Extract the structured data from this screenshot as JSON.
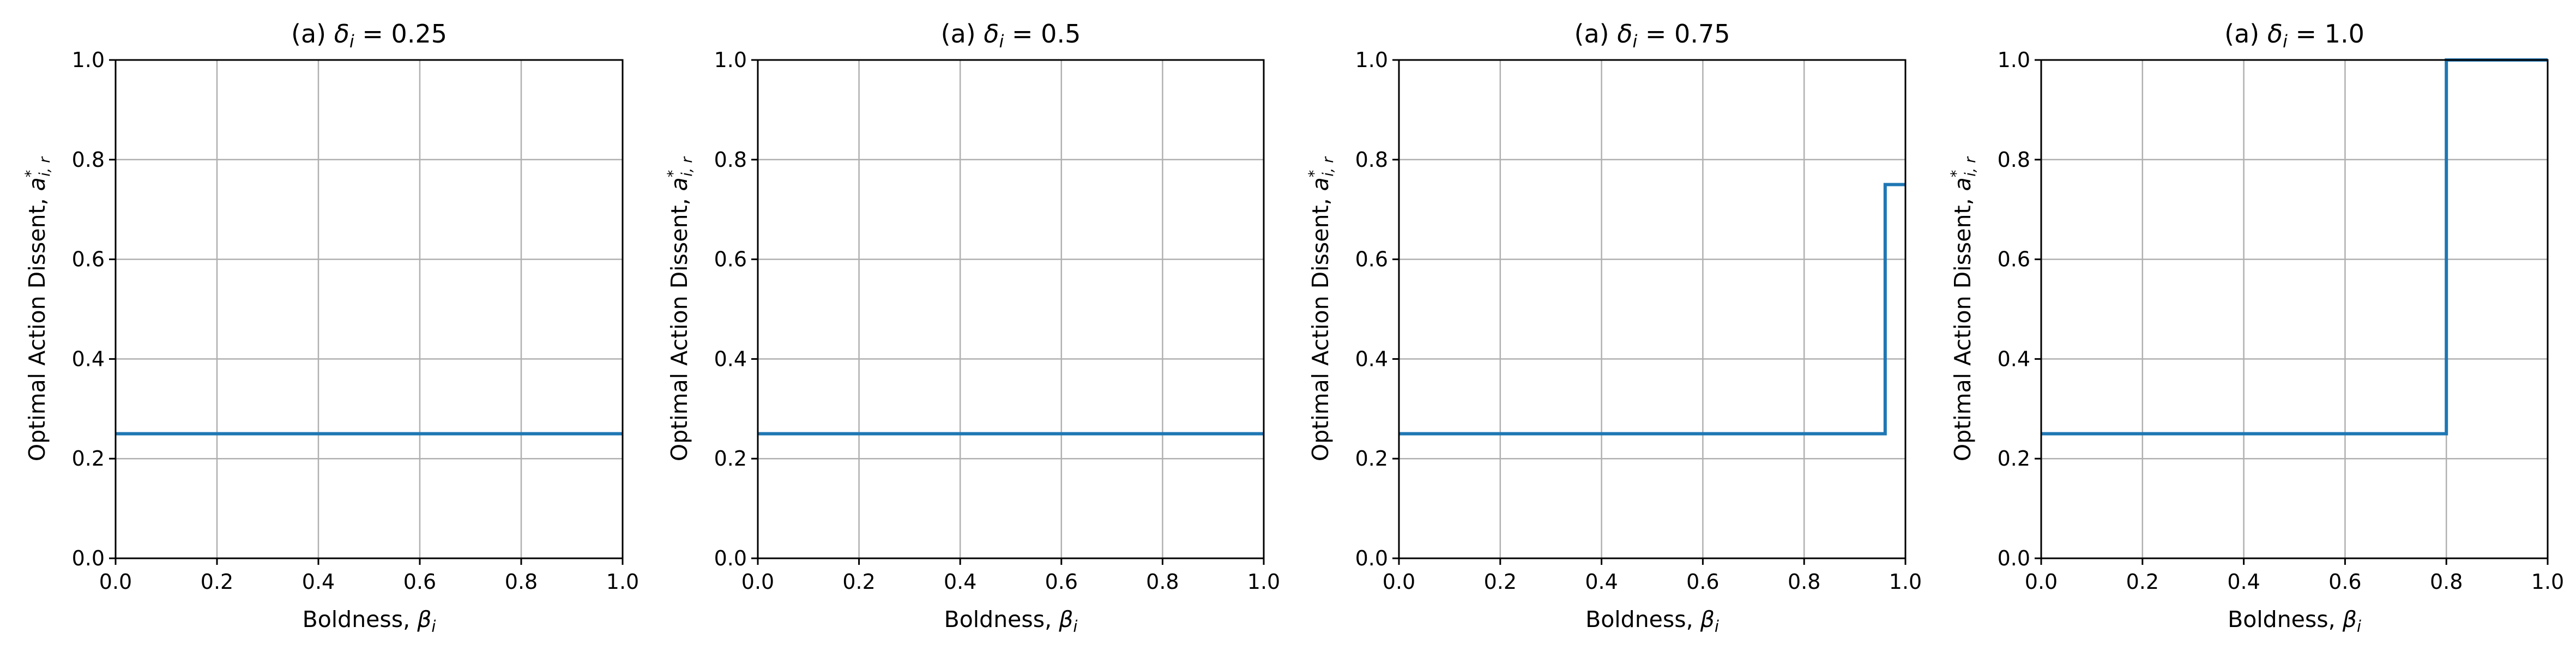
{
  "chart_data": [
    {
      "type": "line",
      "title": "(a) δ_i = 0.25",
      "title_parts": {
        "prefix": "(a) ",
        "var": "δ",
        "sub": "i",
        "suffix": " = 0.25"
      },
      "xlabel": "Boldness, β_i",
      "ylabel": "Optimal Action Dissent, a*_{i,r}",
      "xlim": [
        0.0,
        1.0
      ],
      "ylim": [
        0.0,
        1.0
      ],
      "xticks": [
        "0.0",
        "0.2",
        "0.4",
        "0.6",
        "0.8",
        "1.0"
      ],
      "yticks": [
        "0.0",
        "0.2",
        "0.4",
        "0.6",
        "0.8",
        "1.0"
      ],
      "grid": true,
      "series": [
        {
          "color": "#1f77b4",
          "step": "post",
          "x": [
            0.0,
            1.0
          ],
          "y": [
            0.25,
            0.25
          ]
        }
      ]
    },
    {
      "type": "line",
      "title": "(a) δ_i = 0.5",
      "title_parts": {
        "prefix": "(a) ",
        "var": "δ",
        "sub": "i",
        "suffix": " = 0.5"
      },
      "xlabel": "Boldness, β_i",
      "ylabel": "Optimal Action Dissent, a*_{i,r}",
      "xlim": [
        0.0,
        1.0
      ],
      "ylim": [
        0.0,
        1.0
      ],
      "xticks": [
        "0.0",
        "0.2",
        "0.4",
        "0.6",
        "0.8",
        "1.0"
      ],
      "yticks": [
        "0.0",
        "0.2",
        "0.4",
        "0.6",
        "0.8",
        "1.0"
      ],
      "grid": true,
      "series": [
        {
          "color": "#1f77b4",
          "step": "post",
          "x": [
            0.0,
            1.0
          ],
          "y": [
            0.25,
            0.25
          ]
        }
      ]
    },
    {
      "type": "line",
      "title": "(a) δ_i = 0.75",
      "title_parts": {
        "prefix": "(a) ",
        "var": "δ",
        "sub": "i",
        "suffix": " = 0.75"
      },
      "xlabel": "Boldness, β_i",
      "ylabel": "Optimal Action Dissent, a*_{i,r}",
      "xlim": [
        0.0,
        1.0
      ],
      "ylim": [
        0.0,
        1.0
      ],
      "xticks": [
        "0.0",
        "0.2",
        "0.4",
        "0.6",
        "0.8",
        "1.0"
      ],
      "yticks": [
        "0.0",
        "0.2",
        "0.4",
        "0.6",
        "0.8",
        "1.0"
      ],
      "grid": true,
      "series": [
        {
          "color": "#1f77b4",
          "step": "post",
          "x": [
            0.0,
            0.96,
            1.0
          ],
          "y": [
            0.25,
            0.75,
            0.75
          ]
        }
      ]
    },
    {
      "type": "line",
      "title": "(a) δ_i = 1.0",
      "title_parts": {
        "prefix": "(a) ",
        "var": "δ",
        "sub": "i",
        "suffix": " = 1.0"
      },
      "xlabel": "Boldness, β_i",
      "ylabel": "Optimal Action Dissent, a*_{i,r}",
      "xlim": [
        0.0,
        1.0
      ],
      "ylim": [
        0.0,
        1.0
      ],
      "xticks": [
        "0.0",
        "0.2",
        "0.4",
        "0.6",
        "0.8",
        "1.0"
      ],
      "yticks": [
        "0.0",
        "0.2",
        "0.4",
        "0.6",
        "0.8",
        "1.0"
      ],
      "grid": true,
      "series": [
        {
          "color": "#1f77b4",
          "step": "post",
          "x": [
            0.0,
            0.8,
            1.0
          ],
          "y": [
            0.25,
            1.0,
            1.0
          ]
        }
      ]
    }
  ],
  "labels": {
    "xlabel_prefix": "Boldness, ",
    "xlabel_var": "β",
    "xlabel_sub": "i",
    "ylabel_prefix": "Optimal Action Dissent, ",
    "ylabel_var": "a",
    "ylabel_sup": "*",
    "ylabel_sub": "i, r"
  }
}
